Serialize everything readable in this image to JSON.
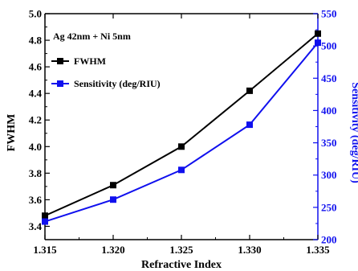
{
  "chart_data": {
    "type": "line",
    "annotation": "Ag 42nm + Ni 5nm",
    "xlabel": "Refractive Index",
    "ylabel_left": "FWHM",
    "ylabel_right": "Sensitivity (deg/RIU)",
    "xlim": [
      1.315,
      1.335
    ],
    "ylim_left": [
      3.3,
      5.0
    ],
    "ylim_right": [
      200,
      550
    ],
    "x_ticks": [
      "1.315",
      "1.320",
      "1.325",
      "1.330",
      "1.335"
    ],
    "y_left_ticks": [
      "3.4",
      "3.6",
      "3.8",
      "4.0",
      "4.2",
      "4.4",
      "4.6",
      "4.8",
      "5.0"
    ],
    "y_right_ticks": [
      "200",
      "250",
      "300",
      "350",
      "400",
      "450",
      "500",
      "550"
    ],
    "legend_position": "top-left",
    "series": [
      {
        "name": "FWHM",
        "axis": "left",
        "color": "#000000",
        "marker": "square",
        "x": [
          1.315,
          1.32,
          1.325,
          1.33,
          1.335
        ],
        "values": [
          3.48,
          3.71,
          4.0,
          4.42,
          4.85
        ]
      },
      {
        "name": "Sensitivity (deg/RIU)",
        "axis": "right",
        "color": "#1010ee",
        "marker": "square",
        "x": [
          1.315,
          1.32,
          1.325,
          1.33,
          1.335
        ],
        "values": [
          228,
          262,
          308,
          378,
          505
        ]
      }
    ],
    "right_axis_color": "#1010ee"
  }
}
